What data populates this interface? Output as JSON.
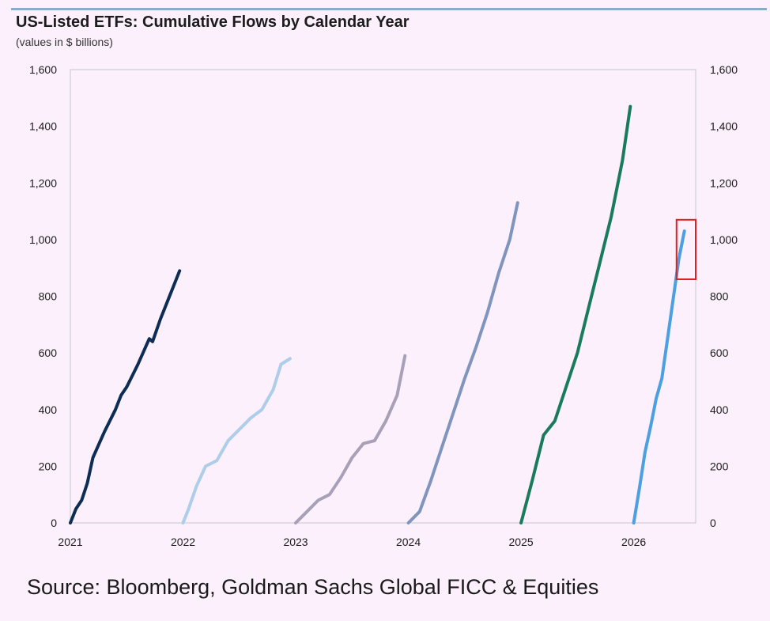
{
  "header": {
    "title": "US-Listed ETFs: Cumulative Flows by Calendar Year",
    "subtitle": "(values in $ billions)"
  },
  "source": "Source: Bloomberg, Goldman Sachs Global FICC & Equities",
  "chart_data": {
    "type": "line",
    "title": "US-Listed ETFs: Cumulative Flows by Calendar Year",
    "subtitle": "(values in $ billions)",
    "xlabel": "",
    "ylabel": "",
    "x_ticks": [
      "2021",
      "2022",
      "2023",
      "2024",
      "2025",
      "2026"
    ],
    "y_ticks": [
      "0",
      "200",
      "400",
      "600",
      "800",
      "1,000",
      "1,200",
      "1,400",
      "1,600"
    ],
    "y_tick_values": [
      0,
      200,
      400,
      600,
      800,
      1000,
      1200,
      1400,
      1600
    ],
    "ylim": [
      0,
      1600
    ],
    "xlim": [
      2021.0,
      2026.55
    ],
    "grid": false,
    "legend": "none",
    "series": [
      {
        "color": "#0d2d55",
        "x": [
          2021.0,
          2021.05,
          2021.1,
          2021.15,
          2021.2,
          2021.3,
          2021.4,
          2021.45,
          2021.5,
          2021.6,
          2021.7,
          2021.73,
          2021.8,
          2021.9,
          2021.97
        ],
        "y": [
          0,
          50,
          80,
          140,
          230,
          320,
          400,
          450,
          480,
          560,
          650,
          640,
          720,
          820,
          890
        ]
      },
      {
        "color": "#aecde9",
        "x": [
          2022.0,
          2022.05,
          2022.12,
          2022.2,
          2022.3,
          2022.4,
          2022.5,
          2022.6,
          2022.7,
          2022.8,
          2022.87,
          2022.95
        ],
        "y": [
          0,
          50,
          130,
          200,
          220,
          290,
          330,
          370,
          400,
          470,
          560,
          580
        ]
      },
      {
        "color": "#a8a0b8",
        "x": [
          2023.0,
          2023.1,
          2023.2,
          2023.3,
          2023.4,
          2023.5,
          2023.6,
          2023.7,
          2023.8,
          2023.9,
          2023.97
        ],
        "y": [
          0,
          40,
          80,
          100,
          160,
          230,
          280,
          290,
          360,
          450,
          590
        ]
      },
      {
        "color": "#8095bd",
        "x": [
          2024.0,
          2024.1,
          2024.2,
          2024.3,
          2024.4,
          2024.5,
          2024.6,
          2024.7,
          2024.8,
          2024.9,
          2024.97
        ],
        "y": [
          0,
          40,
          150,
          270,
          390,
          510,
          620,
          740,
          880,
          1000,
          1130
        ]
      },
      {
        "color": "#1a7b5c",
        "x": [
          2025.0,
          2025.1,
          2025.2,
          2025.3,
          2025.4,
          2025.5,
          2025.6,
          2025.7,
          2025.8,
          2025.9,
          2025.97
        ],
        "y": [
          0,
          150,
          310,
          360,
          480,
          600,
          760,
          920,
          1080,
          1280,
          1470
        ]
      },
      {
        "color": "#4c9fe0",
        "x": [
          2026.0,
          2026.05,
          2026.1,
          2026.15,
          2026.2,
          2026.25,
          2026.3,
          2026.35,
          2026.4,
          2026.45
        ],
        "y": [
          0,
          120,
          250,
          340,
          440,
          510,
          650,
          790,
          930,
          1030
        ]
      }
    ],
    "annotations": [
      {
        "type": "highlight-box",
        "color": "#e02020",
        "x_range": [
          2026.38,
          2026.55
        ],
        "y_range": [
          860,
          1070
        ]
      }
    ]
  }
}
